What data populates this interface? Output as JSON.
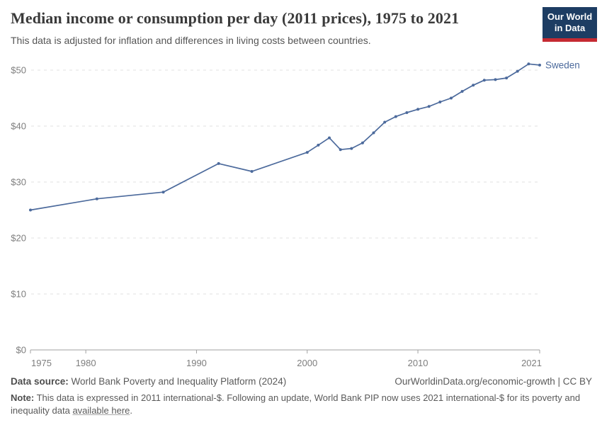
{
  "header": {
    "title": "Median income or consumption per day (2011 prices), 1975 to 2021",
    "subtitle": "This data is adjusted for inflation and differences in living costs between countries.",
    "logo": {
      "line1": "Our World",
      "line2": "in Data",
      "bg_color": "#1d3d63",
      "accent_color": "#c52a32"
    }
  },
  "chart_data": {
    "type": "line",
    "title": "Median income or consumption per day (2011 prices), 1975 to 2021",
    "xlabel": "",
    "ylabel": "",
    "xlim": [
      1975,
      2021
    ],
    "ylim": [
      0,
      50
    ],
    "x_ticks": [
      1975,
      1980,
      1990,
      2000,
      2010,
      2021
    ],
    "y_ticks": [
      0,
      10,
      20,
      30,
      40,
      50
    ],
    "y_tick_prefix": "$",
    "grid": "horizontal-dashed",
    "legend_position": "end-of-line-label",
    "series": [
      {
        "name": "Sweden",
        "color": "#4C6A9C",
        "points": [
          [
            1975,
            25.0
          ],
          [
            1981,
            27.0
          ],
          [
            1987,
            28.2
          ],
          [
            1992,
            33.3
          ],
          [
            1995,
            31.9
          ],
          [
            2000,
            35.3
          ],
          [
            2001,
            36.6
          ],
          [
            2002,
            37.9
          ],
          [
            2003,
            35.8
          ],
          [
            2004,
            36.0
          ],
          [
            2005,
            37.0
          ],
          [
            2006,
            38.8
          ],
          [
            2007,
            40.7
          ],
          [
            2008,
            41.7
          ],
          [
            2009,
            42.4
          ],
          [
            2010,
            43.0
          ],
          [
            2011,
            43.5
          ],
          [
            2012,
            44.3
          ],
          [
            2013,
            45.0
          ],
          [
            2014,
            46.2
          ],
          [
            2015,
            47.3
          ],
          [
            2016,
            48.2
          ],
          [
            2017,
            48.3
          ],
          [
            2018,
            48.6
          ],
          [
            2019,
            49.8
          ],
          [
            2020,
            51.1
          ],
          [
            2021,
            50.9
          ]
        ]
      }
    ]
  },
  "footer": {
    "datasource_label": "Data source:",
    "datasource_value": "World Bank Poverty and Inequality Platform (2024)",
    "attribution": "OurWorldinData.org/economic-growth | CC BY",
    "note_label": "Note:",
    "note_before_link": "This data is expressed in 2011 international-$. Following an update, World Bank PIP now uses 2021 international-$ for its poverty and inequality data ",
    "note_link": "available here",
    "note_after_link": "."
  }
}
